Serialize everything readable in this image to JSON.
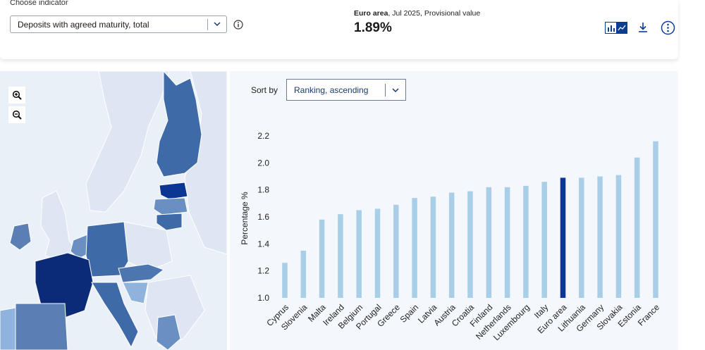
{
  "header": {
    "choose_label": "Choose indicator",
    "indicator_value": "Deposits with agreed maturity, total",
    "ea_region": "Euro area",
    "ea_detail": ", Jul 2025, Provisional value",
    "ea_value": "1.89%",
    "icons": [
      "info-icon",
      "bar-chart-icon",
      "line-chart-icon",
      "download-icon",
      "more-icon"
    ]
  },
  "map": {
    "zoom_in": "zoom-in-icon",
    "zoom_out": "zoom-out-icon"
  },
  "sort": {
    "label": "Sort by",
    "value": "Ranking, ascending"
  },
  "colors": {
    "bar": "#a9cfe8",
    "highlight": "#0b3694",
    "map_land": "#e3eaf4",
    "map_sea": "#eaf0f8"
  },
  "chart_data": {
    "type": "bar",
    "ylabel": "Percentage %",
    "ylim": [
      1.0,
      2.2
    ],
    "yticks": [
      "1.0",
      "1.2",
      "1.4",
      "1.6",
      "1.8",
      "2.0",
      "2.2"
    ],
    "highlight": "Euro area",
    "categories": [
      "Cyprus",
      "Slovenia",
      "Malta",
      "Ireland",
      "Belgium",
      "Portugal",
      "Greece",
      "Spain",
      "Latvia",
      "Austria",
      "Croatia",
      "Finland",
      "Netherlands",
      "Luxembourg",
      "Italy",
      "Euro area",
      "Lithuania",
      "Germany",
      "Slovakia",
      "Estonia",
      "France"
    ],
    "values": [
      1.26,
      1.35,
      1.58,
      1.62,
      1.65,
      1.66,
      1.69,
      1.74,
      1.75,
      1.78,
      1.79,
      1.82,
      1.82,
      1.83,
      1.86,
      1.89,
      1.89,
      1.9,
      1.91,
      2.04,
      2.16
    ]
  }
}
